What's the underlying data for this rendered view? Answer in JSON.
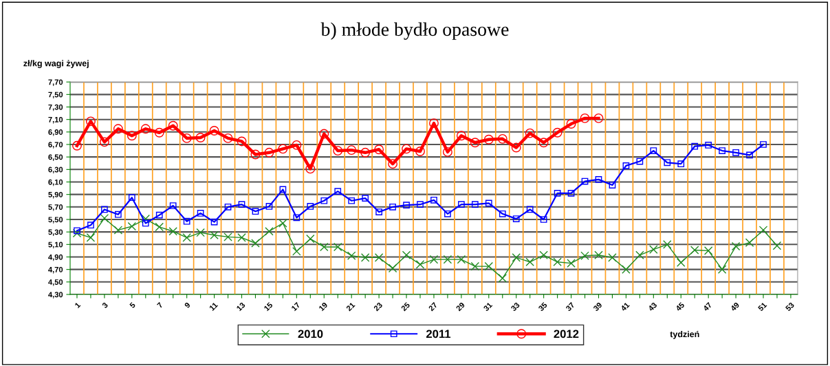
{
  "chart_data": {
    "type": "line",
    "title": "b) młode bydło opasowe",
    "ylabel": "zł/kg wagi żywej",
    "xlabel": "tydzień",
    "categories": [
      "1",
      null,
      "3",
      null,
      "5",
      null,
      "7",
      null,
      "9",
      null,
      "11",
      null,
      "13",
      null,
      "15",
      null,
      "17",
      null,
      "19",
      null,
      "21",
      null,
      "23",
      null,
      "25",
      null,
      "27",
      null,
      "29",
      null,
      "31",
      null,
      "33",
      null,
      "35",
      null,
      "37",
      null,
      "39",
      null,
      "41",
      null,
      "43",
      null,
      "45",
      null,
      "47",
      null,
      "49",
      null,
      "51",
      null,
      "53"
    ],
    "series": [
      {
        "name": "2010",
        "color": "#228b22",
        "marker": "cross",
        "values": [
          5.28,
          5.21,
          5.52,
          5.33,
          5.39,
          5.51,
          5.38,
          5.31,
          5.21,
          5.29,
          5.25,
          5.22,
          5.21,
          5.12,
          5.31,
          5.44,
          4.99,
          5.19,
          5.06,
          5.06,
          4.92,
          4.89,
          4.89,
          4.72,
          4.93,
          4.78,
          4.86,
          4.86,
          4.86,
          4.75,
          4.75,
          4.56,
          4.89,
          4.82,
          4.93,
          4.82,
          4.8,
          4.92,
          4.93,
          4.89,
          4.7,
          4.93,
          5.02,
          5.1,
          4.81,
          5.01,
          5.0,
          4.7,
          5.07,
          5.13,
          5.33,
          5.08,
          null
        ]
      },
      {
        "name": "2011",
        "color": "#0000ff",
        "marker": "square",
        "values": [
          5.32,
          5.41,
          5.66,
          5.58,
          5.85,
          5.44,
          5.57,
          5.72,
          5.47,
          5.6,
          5.46,
          5.7,
          5.74,
          5.63,
          5.71,
          5.98,
          5.53,
          5.71,
          5.8,
          5.95,
          5.8,
          5.84,
          5.62,
          5.7,
          5.73,
          5.74,
          5.81,
          5.59,
          5.74,
          5.74,
          5.76,
          5.59,
          5.51,
          5.66,
          5.5,
          5.92,
          5.92,
          6.11,
          6.14,
          6.05,
          6.36,
          6.43,
          6.6,
          6.41,
          6.39,
          6.67,
          6.69,
          6.6,
          6.57,
          6.53,
          6.7,
          null,
          null
        ]
      },
      {
        "name": "2012",
        "color": "#ff0000",
        "marker": "circle",
        "values": [
          6.68,
          7.07,
          6.74,
          6.95,
          6.84,
          6.95,
          6.89,
          7.0,
          6.8,
          6.81,
          6.92,
          6.8,
          6.75,
          6.54,
          6.57,
          6.63,
          6.69,
          6.31,
          6.87,
          6.6,
          6.61,
          6.57,
          6.62,
          6.39,
          6.63,
          6.59,
          7.04,
          6.58,
          6.84,
          6.73,
          6.78,
          6.79,
          6.65,
          6.88,
          6.73,
          6.89,
          7.03,
          7.12,
          7.12,
          null,
          null,
          null,
          null,
          null,
          null,
          null,
          null,
          null,
          null,
          null,
          null,
          null,
          null
        ]
      }
    ],
    "ylim": [
      4.3,
      7.7
    ],
    "yticks": [
      {
        "value": 4.3,
        "label": "4,30"
      },
      {
        "value": 4.5,
        "label": "4,50"
      },
      {
        "value": 4.7,
        "label": "4,70"
      },
      {
        "value": 4.9,
        "label": "4,90"
      },
      {
        "value": 5.1,
        "label": "5,10"
      },
      {
        "value": 5.3,
        "label": "5,30"
      },
      {
        "value": 5.5,
        "label": "5,50"
      },
      {
        "value": 5.7,
        "label": "5,70"
      },
      {
        "value": 5.9,
        "label": "5,90"
      },
      {
        "value": 6.1,
        "label": "6,10"
      },
      {
        "value": 6.3,
        "label": "6,30"
      },
      {
        "value": 6.5,
        "label": "6,50"
      },
      {
        "value": 6.7,
        "label": "6,70"
      },
      {
        "value": 6.9,
        "label": "6,90"
      },
      {
        "value": 7.1,
        "label": "7,10"
      },
      {
        "value": 7.3,
        "label": "7,30"
      },
      {
        "value": 7.5,
        "label": "7,50"
      },
      {
        "value": 7.7,
        "label": "7,70"
      }
    ],
    "grid": true,
    "legend": "bottom",
    "line_style": "solid"
  }
}
